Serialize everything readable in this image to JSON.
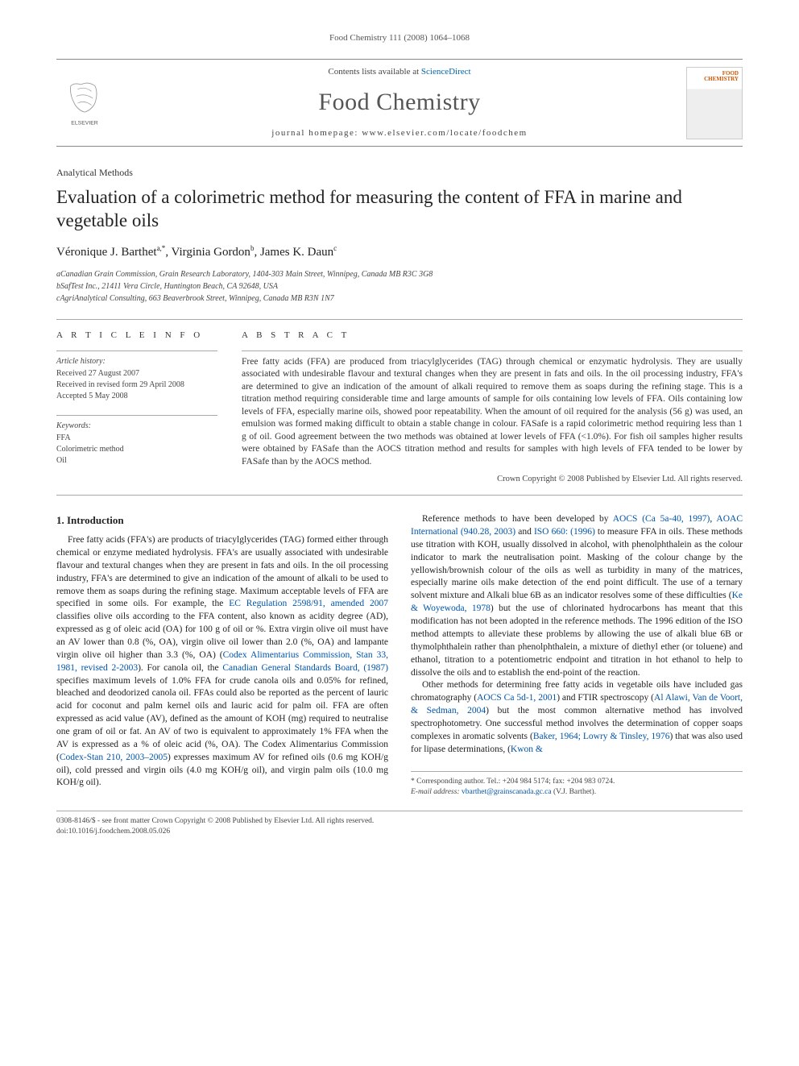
{
  "running_head": "Food Chemistry 111 (2008) 1064–1068",
  "masthead": {
    "contents_prefix": "Contents lists available at ",
    "contents_link": "ScienceDirect",
    "journal_title": "Food Chemistry",
    "homepage_prefix": "journal homepage: ",
    "homepage_url": "www.elsevier.com/locate/foodchem",
    "publisher_name": "ELSEVIER",
    "cover_label": "FOOD\nCHEMISTRY"
  },
  "article": {
    "type": "Analytical Methods",
    "title": "Evaluation of a colorimetric method for measuring the content of FFA in marine and vegetable oils",
    "authors_html": "Véronique J. Barthet<sup>a,*</sup>, Virginia Gordon<sup>b</sup>, James K. Daun<sup>c</sup>",
    "affiliations": [
      "aCanadian Grain Commission, Grain Research Laboratory, 1404-303 Main Street, Winnipeg, Canada MB R3C 3G8",
      "bSafTest Inc., 21411 Vera Circle, Huntington Beach, CA 92648, USA",
      "cAgriAnalytical Consulting, 663 Beaverbrook Street, Winnipeg, Canada MB R3N 1N7"
    ]
  },
  "info": {
    "heading": "A R T I C L E   I N F O",
    "history_label": "Article history:",
    "history": [
      "Received 27 August 2007",
      "Received in revised form 29 April 2008",
      "Accepted 5 May 2008"
    ],
    "keywords_label": "Keywords:",
    "keywords": [
      "FFA",
      "Colorimetric method",
      "Oil"
    ]
  },
  "abstract": {
    "heading": "A B S T R A C T",
    "text": "Free fatty acids (FFA) are produced from triacylglycerides (TAG) through chemical or enzymatic hydrolysis. They are usually associated with undesirable flavour and textural changes when they are present in fats and oils. In the oil processing industry, FFA's are determined to give an indication of the amount of alkali required to remove them as soaps during the refining stage. This is a titration method requiring considerable time and large amounts of sample for oils containing low levels of FFA. Oils containing low levels of FFA, especially marine oils, showed poor repeatability. When the amount of oil required for the analysis (56 g) was used, an emulsion was formed making difficult to obtain a stable change in colour. FASafe is a rapid colorimetric method requiring less than 1 g of oil. Good agreement between the two methods was obtained at lower levels of FFA (<1.0%). For fish oil samples higher results were obtained by FASafe than the AOCS titration method and results for samples with high levels of FFA tended to be lower by FASafe than by the AOCS method.",
    "copyright": "Crown Copyright © 2008 Published by Elsevier Ltd. All rights reserved."
  },
  "section1": {
    "heading": "1. Introduction",
    "p1_a": "Free fatty acids (FFA's) are products of triacylglycerides (TAG) formed either through chemical or enzyme mediated hydrolysis. FFA's are usually associated with undesirable flavour and textural changes when they are present in fats and oils. In the oil processing industry, FFA's are determined to give an indication of the amount of alkali to be used to remove them as soaps during the refining stage. Maximum acceptable levels of FFA are specified in some oils. For example, the ",
    "p1_link1": "EC Regulation 2598/91, amended 2007",
    "p1_b": " classifies olive oils according to the FFA content, also known as acidity degree (AD), expressed as g of oleic acid (OA) for 100 g of oil or %. Extra virgin olive oil must have an AV lower than 0.8 (%, OA), virgin olive oil lower than 2.0 (%, OA) and lampante virgin olive oil higher than 3.3 (%, OA) (",
    "p1_link2": "Codex Alimentarius Commission, Stan 33, 1981, revised 2-2003",
    "p1_c": "). For canola oil, the ",
    "p1_link3": "Canadian General Standards Board, (1987)",
    "p1_d": " specifies maximum levels of 1.0% FFA for crude canola oils and 0.05% for refined, bleached and deodorized canola oil. FFAs could also be reported as the percent of lauric acid for coconut and palm kernel oils and lauric acid for palm oil. FFA are often expressed as acid value (AV), defined as the amount of KOH (mg) required to neutralise one gram of oil or fat. An AV of two is equivalent to approximately 1% FFA when the AV is expressed as a % of oleic acid (%, OA). The Codex Alimentarius Commission (",
    "p1_link4": "Codex-Stan 210, 2003–2005",
    "p1_e": ") expresses maximum AV for refined oils (0.6 mg KOH/g oil), cold pressed and virgin oils (4.0 mg KOH/g oil), and virgin palm oils (10.0 mg KOH/g oil).",
    "p2_a": "Reference methods to have been developed by ",
    "p2_link1": "AOCS (Ca 5a-40, 1997)",
    "p2_b": ", ",
    "p2_link2": "AOAC International (940.28, 2003)",
    "p2_c": " and ",
    "p2_link3": "ISO 660: (1996)",
    "p2_d": " to measure FFA in oils. These methods use titration with KOH, usually dissolved in alcohol, with phenolphthalein as the colour indicator to mark the neutralisation point. Masking of the colour change by the yellowish/brownish colour of the oils as well as turbidity in many of the matrices, especially marine oils make detection of the end point difficult. The use of a ternary solvent mixture and Alkali blue 6B as an indicator resolves some of these difficulties (",
    "p2_link4": "Ke & Woyewoda, 1978",
    "p2_e": ") but the use of chlorinated hydrocarbons has meant that this modification has not been adopted in the reference methods. The 1996 edition of the ISO method attempts to alleviate these problems by allowing the use of alkali blue 6B or thymolphthalein rather than phenolphthalein, a mixture of diethyl ether (or toluene) and ethanol, titration to a potentiometric endpoint and titration in hot ethanol to help to dissolve the oils and to establish the end-point of the reaction.",
    "p3_a": "Other methods for determining free fatty acids in vegetable oils have included gas chromatography (",
    "p3_link1": "AOCS Ca 5d-1, 2001",
    "p3_b": ") and FTIR spectroscopy (",
    "p3_link2": "Al Alawi, Van de Voort, & Sedman, 2004",
    "p3_c": ") but the most common alternative method has involved spectrophotometry. One successful method involves the determination of copper soaps complexes in aromatic solvents (",
    "p3_link3": "Baker, 1964; Lowry & Tinsley, 1976",
    "p3_d": ") that was also used for lipase determinations, (",
    "p3_link4": "Kwon &"
  },
  "corresponding": {
    "label": "* Corresponding author. Tel.: +204 984 5174; fax: +204 983 0724.",
    "email_label": "E-mail address:",
    "email": "vbarthet@grainscanada.gc.ca",
    "email_suffix": "(V.J. Barthet)."
  },
  "footer": {
    "line1": "0308-8146/$ - see front matter Crown Copyright © 2008 Published by Elsevier Ltd. All rights reserved.",
    "line2": "doi:10.1016/j.foodchem.2008.05.026"
  },
  "colors": {
    "link": "#0055aa",
    "text": "#333333",
    "rule": "#aaaaaa",
    "elsevier_orange": "#ee8833"
  }
}
